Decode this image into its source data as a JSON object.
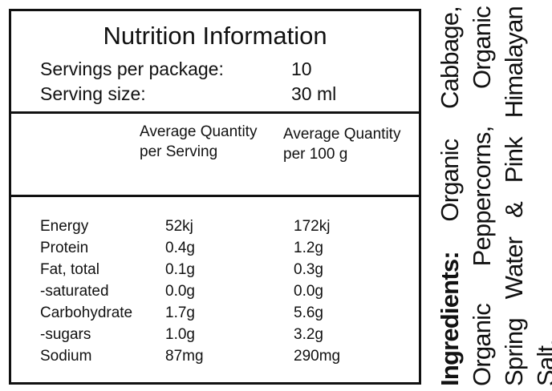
{
  "nutrition_panel": {
    "title": "Nutrition Information",
    "servings_label": "Servings per package:",
    "servings_value": "10",
    "serving_size_label": "Serving size:",
    "serving_size_value": "30 ml",
    "col_serving_header": "Average Quantity per Serving",
    "col_100_header": "Average Quantity per 100 g",
    "rows": [
      {
        "name": "Energy",
        "per_serving": "52kj",
        "per_100": "172kj"
      },
      {
        "name": "Protein",
        "per_serving": "0.4g",
        "per_100": "1.2g"
      },
      {
        "name": "Fat, total",
        "per_serving": "0.1g",
        "per_100": "0.3g"
      },
      {
        "name": "-saturated",
        "per_serving": "0.0g",
        "per_100": "0.0g"
      },
      {
        "name": "Carbohydrate",
        "per_serving": "1.7g",
        "per_100": "5.6g"
      },
      {
        "name": "-sugars",
        "per_serving": "1.0g",
        "per_100": "3.2g"
      },
      {
        "name": "Sodium",
        "per_serving": "87mg",
        "per_100": "290mg"
      }
    ]
  },
  "ingredients": {
    "label": "Ingredients:",
    "text": "Organic Cabbage, Organic Peppercorns, Organic Spring Water & Pink Himalayan Salt."
  }
}
